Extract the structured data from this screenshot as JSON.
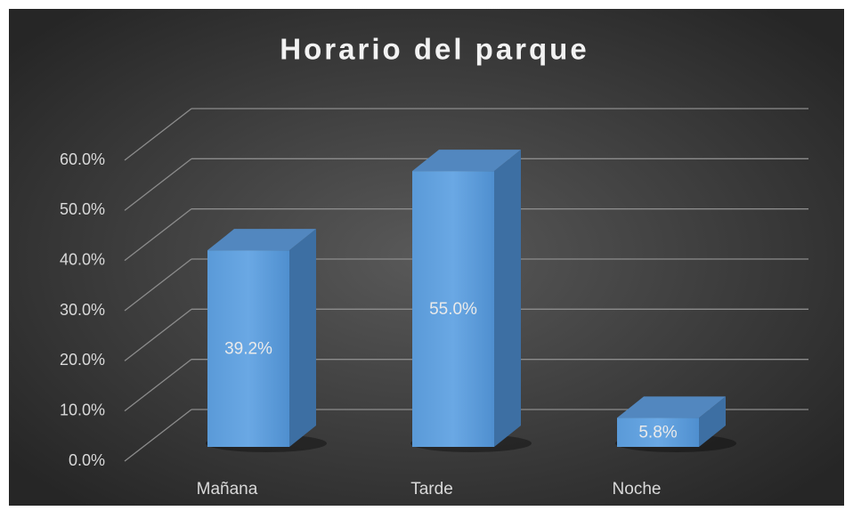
{
  "chart_data": {
    "type": "bar3d",
    "title": "Horario del parque",
    "categories": [
      "Mañana",
      "Tarde",
      "Noche"
    ],
    "values": [
      39.2,
      55.0,
      5.8
    ],
    "value_labels": [
      "39.2%",
      "55.0%",
      "5.8%"
    ],
    "color": "#5b9bd5",
    "ylim": [
      0,
      60
    ],
    "yticks": [
      {
        "value": 0,
        "label": "0.0%"
      },
      {
        "value": 10,
        "label": "10.0%"
      },
      {
        "value": 20,
        "label": "20.0%"
      },
      {
        "value": 30,
        "label": "30.0%"
      },
      {
        "value": 40,
        "label": "40.0%"
      },
      {
        "value": 50,
        "label": "50.0%"
      },
      {
        "value": 60,
        "label": "60.0%"
      }
    ],
    "grid": true
  }
}
